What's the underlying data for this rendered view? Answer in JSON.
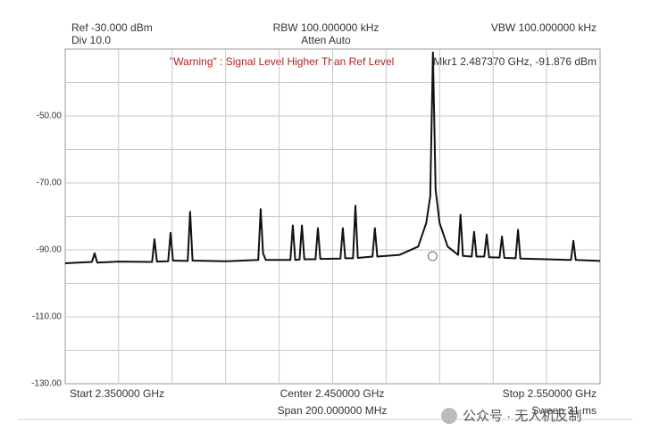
{
  "chart_data": {
    "type": "line",
    "ref_label": "Ref -30.000 dBm",
    "div_label": "Div 10.0",
    "rbw_label": "RBW 100.000000 kHz",
    "atten_label": "Atten Auto",
    "vbw_label": "VBW 100.000000 kHz",
    "warning": "\"Warning\" : Signal Level Higher Than Ref Level",
    "marker_label": "Mkr1 2.487370 GHz, -91.876 dBm",
    "marker": {
      "x": 2.48737,
      "y": -91.876
    },
    "start_label": "Start 2.350000 GHz",
    "center_label": "Center 2.450000 GHz",
    "span_label": "Span 200.000000 MHz",
    "stop_label": "Stop 2.550000 GHz",
    "sweep_label": "Sweep 31 ms",
    "watermark": "公众号 · 无人机反制",
    "xlim": [
      2.35,
      2.55
    ],
    "ylim": [
      -130,
      -30
    ],
    "yticks": [
      {
        "value": -50,
        "label": "-50.00"
      },
      {
        "value": -70,
        "label": "-70.00"
      },
      {
        "value": -90,
        "label": "-90.00"
      },
      {
        "value": -110,
        "label": "-110.00"
      },
      {
        "value": -130,
        "label": "-130.00"
      }
    ],
    "y_grid": [
      -40,
      -50,
      -60,
      -70,
      -80,
      -90,
      -100,
      -110,
      -120
    ],
    "x_grid": [
      2.37,
      2.39,
      2.41,
      2.43,
      2.45,
      2.47,
      2.49,
      2.51,
      2.53
    ],
    "grid": true,
    "series": [
      {
        "color": "#111111",
        "x": [
          2.35,
          2.36,
          2.361,
          2.362,
          2.37,
          2.3825,
          2.3834,
          2.3843,
          2.3885,
          2.3894,
          2.3903,
          2.3958,
          2.3967,
          2.3976,
          2.41,
          2.4222,
          2.4231,
          2.424,
          2.425,
          2.4342,
          2.4351,
          2.436,
          2.4376,
          2.4385,
          2.4394,
          2.4436,
          2.4445,
          2.4454,
          2.4529,
          2.4538,
          2.4547,
          2.4576,
          2.4585,
          2.4594,
          2.4649,
          2.4658,
          2.4667,
          2.475,
          2.482,
          2.485,
          2.4865,
          2.4875,
          2.4885,
          2.49,
          2.493,
          2.4969,
          2.4978,
          2.4987,
          2.502,
          2.5029,
          2.5038,
          2.5067,
          2.5076,
          2.5085,
          2.5124,
          2.5133,
          2.5142,
          2.5184,
          2.5193,
          2.5202,
          2.53,
          2.5391,
          2.54,
          2.5409,
          2.55
        ],
        "values": [
          -94,
          -93.6,
          -91,
          -93.8,
          -93.5,
          -93.6,
          -86.8,
          -93.5,
          -93.4,
          -84.9,
          -93.2,
          -93.3,
          -78.6,
          -93.2,
          -93.4,
          -93,
          -77.8,
          -91,
          -93,
          -93,
          -82.7,
          -93,
          -92.9,
          -82.7,
          -92.8,
          -92.8,
          -83.5,
          -92.7,
          -92.6,
          -83.5,
          -92.5,
          -92.5,
          -76.8,
          -92.4,
          -92,
          -83.5,
          -92,
          -91.5,
          -89,
          -82,
          -74,
          -31,
          -72,
          -82,
          -89,
          -91.5,
          -79.5,
          -91.8,
          -92,
          -84.6,
          -92,
          -92,
          -85.4,
          -92.2,
          -92.3,
          -86,
          -92.4,
          -92.5,
          -84,
          -92.6,
          -92.8,
          -93,
          -87.3,
          -93,
          -93.3
        ]
      }
    ]
  }
}
